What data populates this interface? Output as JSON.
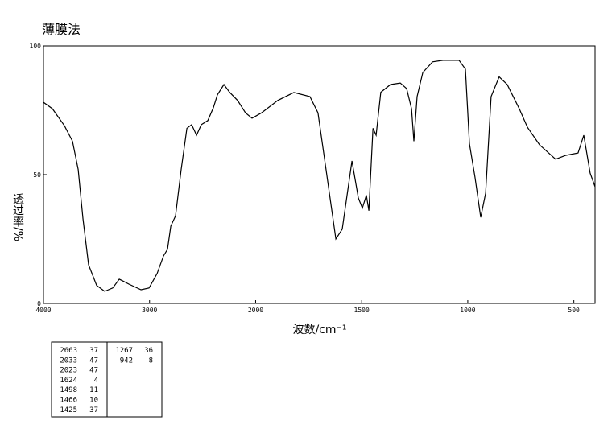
{
  "chart_data": {
    "type": "line",
    "title": "薄膜法",
    "xlabel": "波数/cm⁻¹",
    "ylabel": "透过率/%",
    "color": "#000000",
    "x_scale_break": 2000,
    "xlim": [
      4000,
      400
    ],
    "xticks": [
      4000,
      3000,
      2000,
      1500,
      1000,
      500
    ],
    "ylim": [
      0,
      100
    ],
    "yticks": [
      0,
      50,
      100
    ],
    "x": [
      4000,
      3916,
      3803,
      3727,
      3673,
      3628,
      3575,
      3499,
      3423,
      3347,
      3286,
      3256,
      3195,
      3081,
      3005,
      2929,
      2869,
      2831,
      2800,
      2755,
      2702,
      2648,
      2603,
      2557,
      2512,
      2451,
      2398,
      2360,
      2299,
      2246,
      2170,
      2095,
      2034,
      1972,
      1896,
      1820,
      1744,
      1706,
      1668,
      1622,
      1592,
      1546,
      1516,
      1497,
      1478,
      1466,
      1447,
      1432,
      1410,
      1364,
      1318,
      1288,
      1265,
      1254,
      1239,
      1212,
      1166,
      1117,
      1041,
      1011,
      992,
      966,
      939,
      916,
      890,
      852,
      814,
      757,
      719,
      662,
      586,
      537,
      480,
      453,
      423,
      400
    ],
    "values": [
      78.1,
      75.6,
      69,
      63,
      52,
      33,
      15,
      7,
      4.7,
      6,
      9.4,
      8.8,
      7.5,
      5.3,
      6,
      11.6,
      18.4,
      21,
      30,
      34,
      52,
      68,
      69.4,
      65.3,
      69.4,
      71,
      76,
      81,
      85,
      82,
      78.8,
      74,
      71.9,
      74,
      78.8,
      81.9,
      80.3,
      74,
      52,
      25,
      28.8,
      55.3,
      41,
      37,
      42,
      36,
      68,
      65.3,
      82,
      85,
      85.6,
      83.4,
      75.6,
      63,
      80.3,
      89.7,
      93.8,
      94.4,
      94.4,
      91,
      62,
      49,
      33.4,
      42.8,
      80.3,
      88,
      85,
      75.6,
      68.4,
      61.6,
      56,
      57.5,
      58.4,
      65.3,
      50.6,
      45.3
    ],
    "peak_table": [
      [
        [
          2663,
          37
        ],
        [
          2033,
          47
        ],
        [
          2023,
          47
        ],
        [
          1624,
          4
        ],
        [
          1498,
          11
        ],
        [
          1466,
          10
        ],
        [
          1425,
          37
        ]
      ],
      [
        [
          1267,
          36
        ],
        [
          942,
          8
        ]
      ]
    ]
  }
}
